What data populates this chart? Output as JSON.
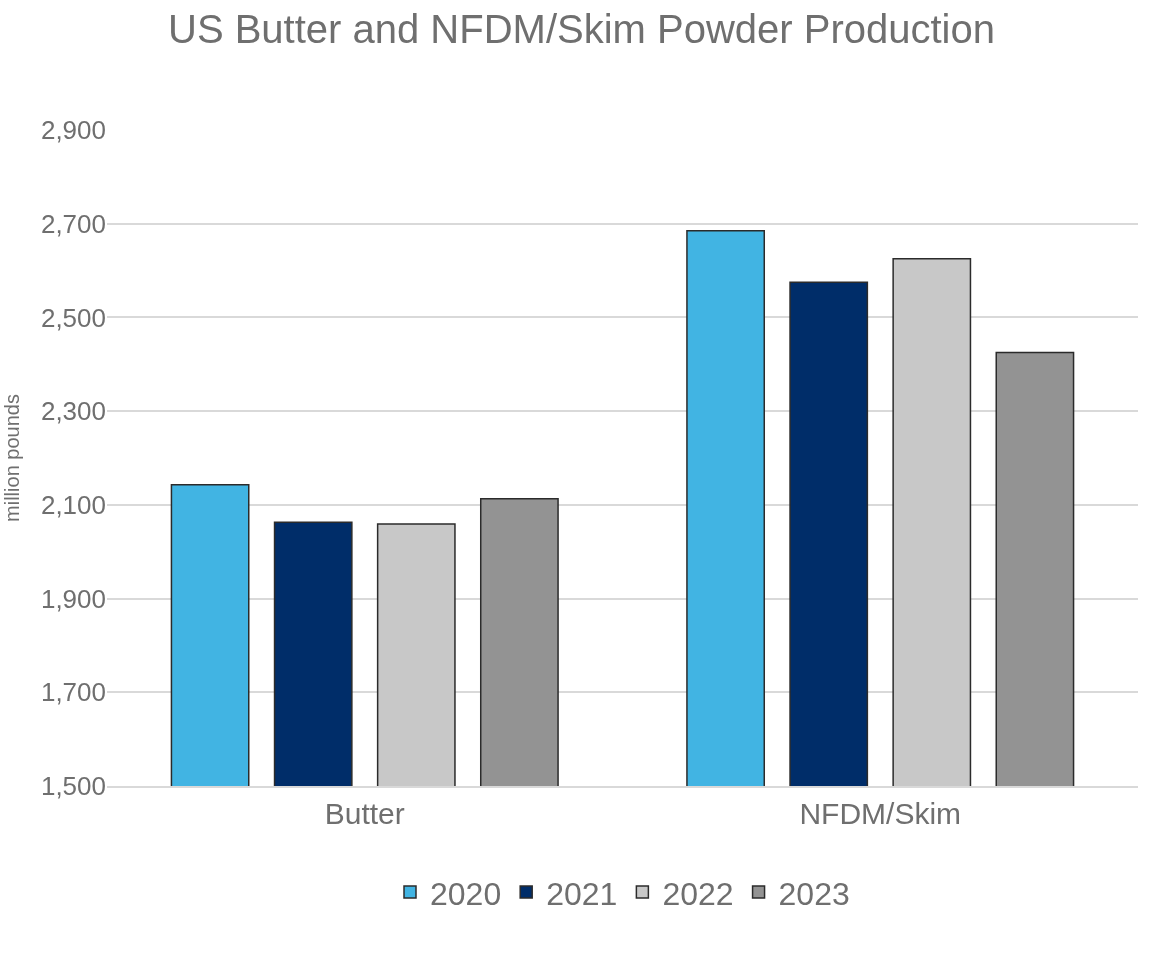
{
  "chart_data": {
    "type": "bar",
    "title": "US Butter and NFDM/Skim Powder Production",
    "ylabel": "million pounds",
    "categories": [
      "Butter",
      "NFDM/Skim"
    ],
    "series": [
      {
        "name": "2020",
        "color": "#41b4e3",
        "values": [
          2143,
          2685
        ]
      },
      {
        "name": "2021",
        "color": "#002d69",
        "values": [
          2063,
          2575
        ]
      },
      {
        "name": "2022",
        "color": "#c8c8c8",
        "values": [
          2059,
          2625
        ]
      },
      {
        "name": "2023",
        "color": "#939393",
        "values": [
          2113,
          2425
        ]
      }
    ],
    "ylim": [
      1500,
      2900
    ],
    "yticks": [
      {
        "value": 1500,
        "label": "1,500"
      },
      {
        "value": 1700,
        "label": "1,700"
      },
      {
        "value": 1900,
        "label": "1,900"
      },
      {
        "value": 2100,
        "label": "2,100"
      },
      {
        "value": 2300,
        "label": "2,300"
      },
      {
        "value": 2500,
        "label": "2,500"
      },
      {
        "value": 2700,
        "label": "2,700"
      },
      {
        "value": 2900,
        "label": "2,900"
      }
    ],
    "grid": "y",
    "legend": "bottom"
  }
}
